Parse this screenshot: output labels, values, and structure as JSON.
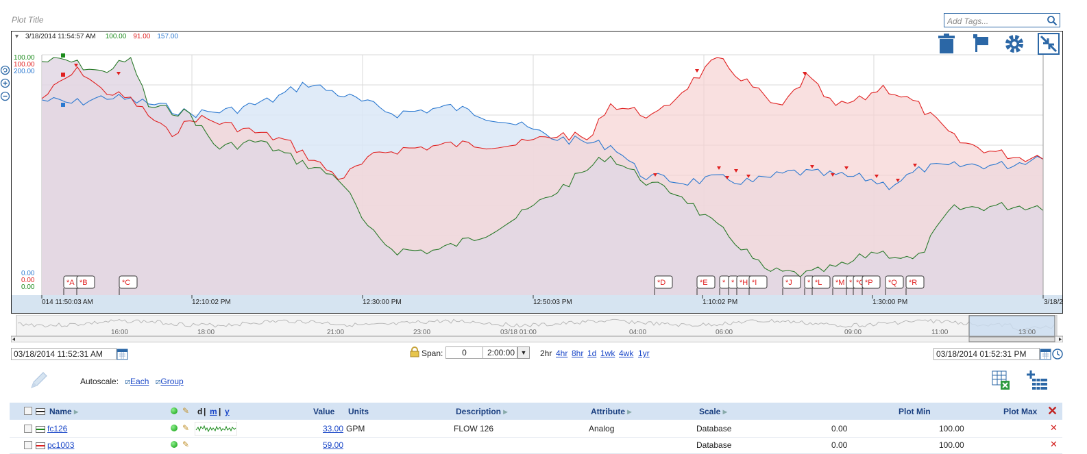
{
  "header": {
    "plot_title": "Plot Title",
    "tag_placeholder": "Add Tags..."
  },
  "cursor": {
    "timestamp": "3/18/2014 11:54:57 AM",
    "values": [
      {
        "value": "100.00",
        "color": "#1a8a1a"
      },
      {
        "value": "91.00",
        "color": "#e02020"
      },
      {
        "value": "157.00",
        "color": "#2a78d0"
      }
    ]
  },
  "y_axis_top": [
    {
      "value": "100.00",
      "color": "#1a8a1a"
    },
    {
      "value": "100.00",
      "color": "#e02020"
    },
    {
      "value": "200.00",
      "color": "#2a78d0"
    }
  ],
  "y_axis_bottom": [
    {
      "value": "0.00",
      "color": "#2a78d0"
    },
    {
      "value": "0.00",
      "color": "#e02020"
    },
    {
      "value": "0.00",
      "color": "#1a8a1a"
    }
  ],
  "x_axis": {
    "ticks": [
      "014 11:50:03  AM",
      "12:10:02  PM",
      "12:30:00  PM",
      "12:50:03  PM",
      "1:10:02  PM",
      "1:30:00  PM",
      "3/18/2"
    ]
  },
  "annotations": [
    "*A",
    "*B",
    "*C",
    "*D",
    "*E",
    "*",
    "*",
    "*H",
    "*I",
    "*J",
    "*",
    "*L",
    "*M",
    "*",
    "*O",
    "*P",
    "*Q",
    "*R"
  ],
  "navigator": {
    "ticks": [
      "16:00",
      "18:00",
      "21:00",
      "23:00",
      "03/18 01:00",
      "04:00",
      "06:00",
      "09:00",
      "11:00",
      "13:00"
    ]
  },
  "range": {
    "start": "03/18/2014 11:52:31 AM",
    "end": "03/18/2014 01:52:31 PM",
    "span_label": "Span:",
    "span_days": "0",
    "span_time": "2:00:00",
    "presets": [
      "2hr",
      "4hr",
      "8hr",
      "1d",
      "1wk",
      "4wk",
      "1yr"
    ]
  },
  "autoscale": {
    "label": "Autoscale:",
    "each": "Each",
    "group": "Group"
  },
  "table": {
    "headers": {
      "name": "Name",
      "dmy_d": "d",
      "dmy_m": "m",
      "dmy_y": "y",
      "value": "Value",
      "units": "Units",
      "description": "Description",
      "attribute": "Attribute",
      "scale": "Scale",
      "plot_min": "Plot Min",
      "plot_max": "Plot Max"
    },
    "rows": [
      {
        "name": "fc126",
        "color": "#1a8a1a",
        "value": "33.00",
        "units": "GPM",
        "description": "FLOW 126",
        "attribute": "Analog",
        "scale": "Database",
        "plot_min": "0.00",
        "plot_max": "100.00"
      },
      {
        "name": "pc1003",
        "color": "#e02020",
        "value": "59.00",
        "units": "",
        "description": "",
        "attribute": "",
        "scale": "Database",
        "plot_min": "0.00",
        "plot_max": "100.00"
      }
    ]
  },
  "icons": [
    "trash-icon",
    "flag-icon",
    "gear-icon",
    "collapse-icon",
    "search-icon",
    "calendar-icon",
    "clock-icon",
    "lock-icon",
    "pencil-icon",
    "export-excel-icon",
    "add-row-icon"
  ]
}
